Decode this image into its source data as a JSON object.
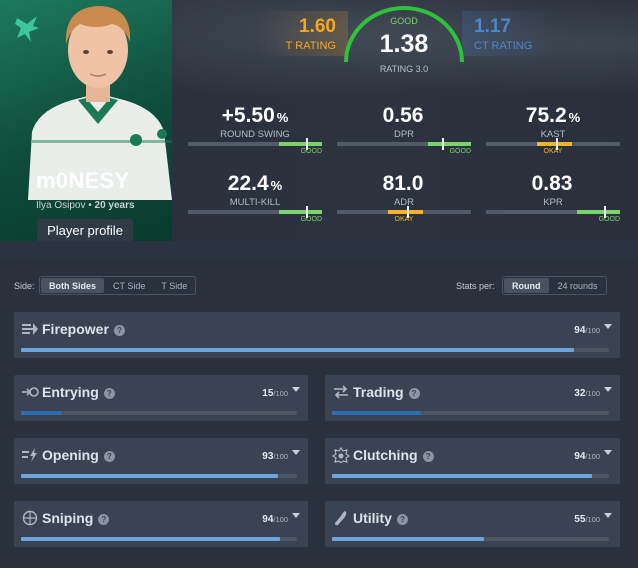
{
  "player": {
    "nickname": "m0NESY",
    "real_name": "Ilya Osipov",
    "age": "20 years",
    "profile_button": "Player profile"
  },
  "ratings": {
    "t_value": "1.60",
    "t_label": "T RATING",
    "main_value": "1.38",
    "main_quality": "GOOD",
    "main_label": "RATING 3.0",
    "ct_value": "1.17",
    "ct_label": "CT RATING"
  },
  "stats": [
    {
      "value": "+5.50",
      "unit": "%",
      "label": "ROUND SWING",
      "quality": "GOOD",
      "level": 0.88
    },
    {
      "value": "0.56",
      "unit": "",
      "label": "DPR",
      "quality": "GOOD",
      "level": 0.78
    },
    {
      "value": "75.2",
      "unit": "%",
      "label": "KAST",
      "quality": "OKAY",
      "level": 0.52
    },
    {
      "value": "22.4",
      "unit": "%",
      "label": "MULTI-KILL",
      "quality": "GOOD",
      "level": 0.88
    },
    {
      "value": "81.0",
      "unit": "",
      "label": "ADR",
      "quality": "OKAY",
      "level": 0.52
    },
    {
      "value": "0.83",
      "unit": "",
      "label": "KPR",
      "quality": "GOOD",
      "level": 0.88
    }
  ],
  "filters": {
    "side_label": "Side:",
    "sides": [
      "Both Sides",
      "CT Side",
      "T Side"
    ],
    "stats_per_label": "Stats per:",
    "stats_per": [
      "Round",
      "24 rounds"
    ]
  },
  "categories": [
    {
      "name": "Firepower",
      "score": "94",
      "denominator": "/100",
      "level": 0.94,
      "icon": "firepower-icon"
    },
    {
      "name": "Entrying",
      "score": "15",
      "denominator": "/100",
      "level": 0.15,
      "icon": "entrying-icon"
    },
    {
      "name": "Trading",
      "score": "32",
      "denominator": "/100",
      "level": 0.32,
      "icon": "trading-icon"
    },
    {
      "name": "Opening",
      "score": "93",
      "denominator": "/100",
      "level": 0.93,
      "icon": "opening-icon"
    },
    {
      "name": "Clutching",
      "score": "94",
      "denominator": "/100",
      "level": 0.94,
      "icon": "clutching-icon"
    },
    {
      "name": "Sniping",
      "score": "94",
      "denominator": "/100",
      "level": 0.94,
      "icon": "sniping-icon"
    },
    {
      "name": "Utility",
      "score": "55",
      "denominator": "/100",
      "level": 0.55,
      "icon": "utility-icon"
    }
  ],
  "help_glyph": "?",
  "colors": {
    "good": "#7bd36b",
    "okay": "#f5b32b",
    "t_side": "#f5a623",
    "ct_side": "#4f86c6",
    "bar_high": "#6ea5dc",
    "bar_low": "#2f6cb3",
    "team_green": "#0e4b3a"
  }
}
